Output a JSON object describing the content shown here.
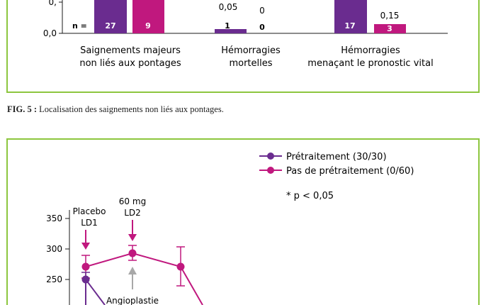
{
  "top_chart": {
    "yticks": [
      "0,0",
      "0,"
    ],
    "n_label": "n =",
    "categories": [
      {
        "line1": "Saignements majeurs",
        "line2": "non liés aux pontages"
      },
      {
        "line1": "Hémorragies",
        "line2": "mortelles"
      },
      {
        "line1": "Hémorragies",
        "line2": "menaçant le pronostic vital"
      }
    ],
    "bars": [
      {
        "series": "purple",
        "n": "27",
        "value_label": ""
      },
      {
        "series": "magenta",
        "n": "9",
        "value_label": ""
      },
      {
        "series": "purple",
        "n": "1",
        "value_label": "0,05"
      },
      {
        "series": "magenta",
        "n": "0",
        "value_label": "0"
      },
      {
        "series": "purple",
        "n": "17",
        "value_label": ""
      },
      {
        "series": "magenta",
        "n": "3",
        "value_label": "0,15"
      }
    ]
  },
  "caption": {
    "prefix": "FIG. 5 :",
    "text": "Localisation des saignements non liés aux pontages."
  },
  "bottom_chart": {
    "legend": [
      {
        "label": "Prétraitement (30/30)",
        "color": "#6a2c8f"
      },
      {
        "label": "Pas de prétraitement (0/60)",
        "color": "#c0187e"
      }
    ],
    "note": "* p < 0,05",
    "yticks": [
      "350",
      "300",
      "250"
    ],
    "annotations": {
      "placebo_1": "Placebo",
      "placebo_2": "LD1",
      "dose_1": "60 mg",
      "dose_2": "LD2",
      "angio": "Angioplastie"
    }
  },
  "colors": {
    "purple": "#6a2c8f",
    "magenta": "#c0187e",
    "frame": "#8dc63f",
    "gray_arrow": "#a8a8a8"
  },
  "chart_data": [
    {
      "type": "bar",
      "categories": [
        "Saignements majeurs non liés aux pontages",
        "Hémorragies mortelles",
        "Hémorragies menaçant le pronostic vital"
      ],
      "series": [
        {
          "values": [
            0.7,
            0.05,
            0.45
          ],
          "n": [
            27,
            1,
            17
          ]
        },
        {
          "values": [
            0.44,
            0,
            0.15
          ],
          "n": [
            9,
            0,
            3
          ]
        }
      ],
      "yticks": [
        "0,0",
        "0,"
      ]
    },
    {
      "type": "line",
      "series": [
        {
          "name": "Prétraitement (30/30)",
          "x": [
            1
          ],
          "y": [
            250
          ],
          "err": [
            10
          ]
        },
        {
          "name": "Pas de prétraitement (0/60)",
          "x": [
            1,
            2,
            3
          ],
          "y": [
            272,
            293,
            272
          ],
          "err": [
            18,
            12,
            32
          ]
        }
      ],
      "ylim": [
        230,
        370
      ],
      "yticks": [
        250,
        300,
        350
      ]
    }
  ]
}
